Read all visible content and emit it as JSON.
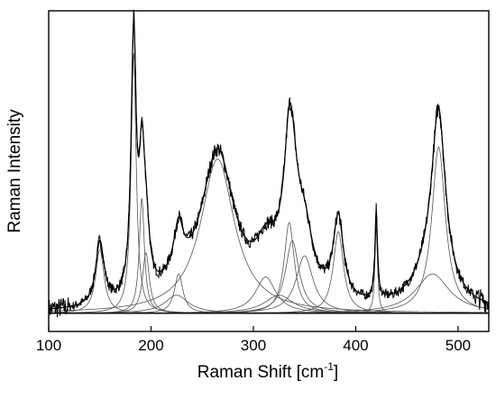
{
  "chart_data": {
    "type": "line",
    "title": "",
    "xlabel": "Raman Shift [cm",
    "xlabel_superscript": "-1",
    "xlabel_suffix": "]",
    "ylabel": "Raman Intensity",
    "xlim": [
      100,
      530
    ],
    "ylim": [
      -0.06,
      1.0
    ],
    "x_ticks": [
      100,
      200,
      300,
      400,
      500
    ],
    "y_ticks_shown": false,
    "grid": false,
    "legend": "none",
    "baseline": 0,
    "peaks": [
      {
        "center": 150,
        "height": 0.21,
        "width": 5
      },
      {
        "center": 183,
        "height": 0.86,
        "width": 3
      },
      {
        "center": 191,
        "height": 0.38,
        "width": 3
      },
      {
        "center": 195,
        "height": 0.2,
        "width": 4
      },
      {
        "center": 227,
        "height": 0.13,
        "width": 5
      },
      {
        "center": 225,
        "height": 0.06,
        "width": 14
      },
      {
        "center": 265,
        "height": 0.51,
        "width": 20
      },
      {
        "center": 312,
        "height": 0.12,
        "width": 12
      },
      {
        "center": 325,
        "height": 0.06,
        "width": 17
      },
      {
        "center": 335,
        "height": 0.3,
        "width": 6
      },
      {
        "center": 338,
        "height": 0.24,
        "width": 8
      },
      {
        "center": 350,
        "height": 0.19,
        "width": 10
      },
      {
        "center": 383,
        "height": 0.27,
        "width": 6
      },
      {
        "center": 420,
        "height": 0.29,
        "width": 1.5
      },
      {
        "center": 475,
        "height": 0.13,
        "width": 20
      },
      {
        "center": 481,
        "height": 0.55,
        "width": 8
      }
    ]
  }
}
